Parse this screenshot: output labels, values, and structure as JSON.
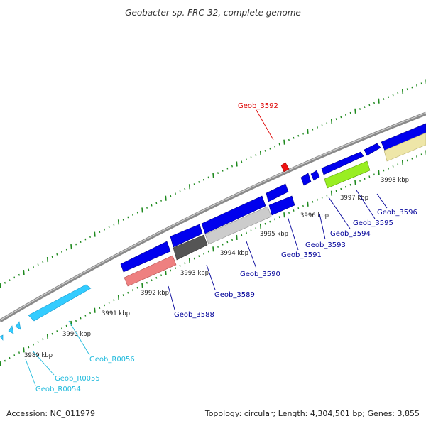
{
  "title": "Geobacter sp. FRC-32, complete genome",
  "footer": {
    "accession": "Accession: NC_011979",
    "summary": "Topology: circular; Length: 4,304,501 bp; Genes: 3,855"
  },
  "colors": {
    "backbone": "#8a8a8a",
    "gc_tick": "#1f8a1f",
    "cds": "#0000ee",
    "rrna": "#33ccff",
    "highlight_label": "#dd0000",
    "cds_label": "#000099",
    "rrna_label": "#22bbdd"
  },
  "kbp_ticks": [
    "3989 kbp",
    "3990 kbp",
    "3991 kbp",
    "3992 kbp",
    "3993 kbp",
    "3994 kbp",
    "3995 kbp",
    "3996 kbp",
    "3997 kbp",
    "3998 kbp"
  ],
  "gene_labels": [
    {
      "id": "Geob_3592",
      "color": "#dd0000"
    },
    {
      "id": "Geob_3596",
      "color": "#000099"
    },
    {
      "id": "Geob_3595",
      "color": "#000099"
    },
    {
      "id": "Geob_3594",
      "color": "#000099"
    },
    {
      "id": "Geob_3593",
      "color": "#000099"
    },
    {
      "id": "Geob_3591",
      "color": "#000099"
    },
    {
      "id": "Geob_3590",
      "color": "#000099"
    },
    {
      "id": "Geob_3589",
      "color": "#000099"
    },
    {
      "id": "Geob_3588",
      "color": "#000099"
    },
    {
      "id": "Geob_R0056",
      "color": "#22bbdd"
    },
    {
      "id": "Geob_R0055",
      "color": "#22bbdd"
    },
    {
      "id": "Geob_R0054",
      "color": "#22bbdd"
    }
  ]
}
